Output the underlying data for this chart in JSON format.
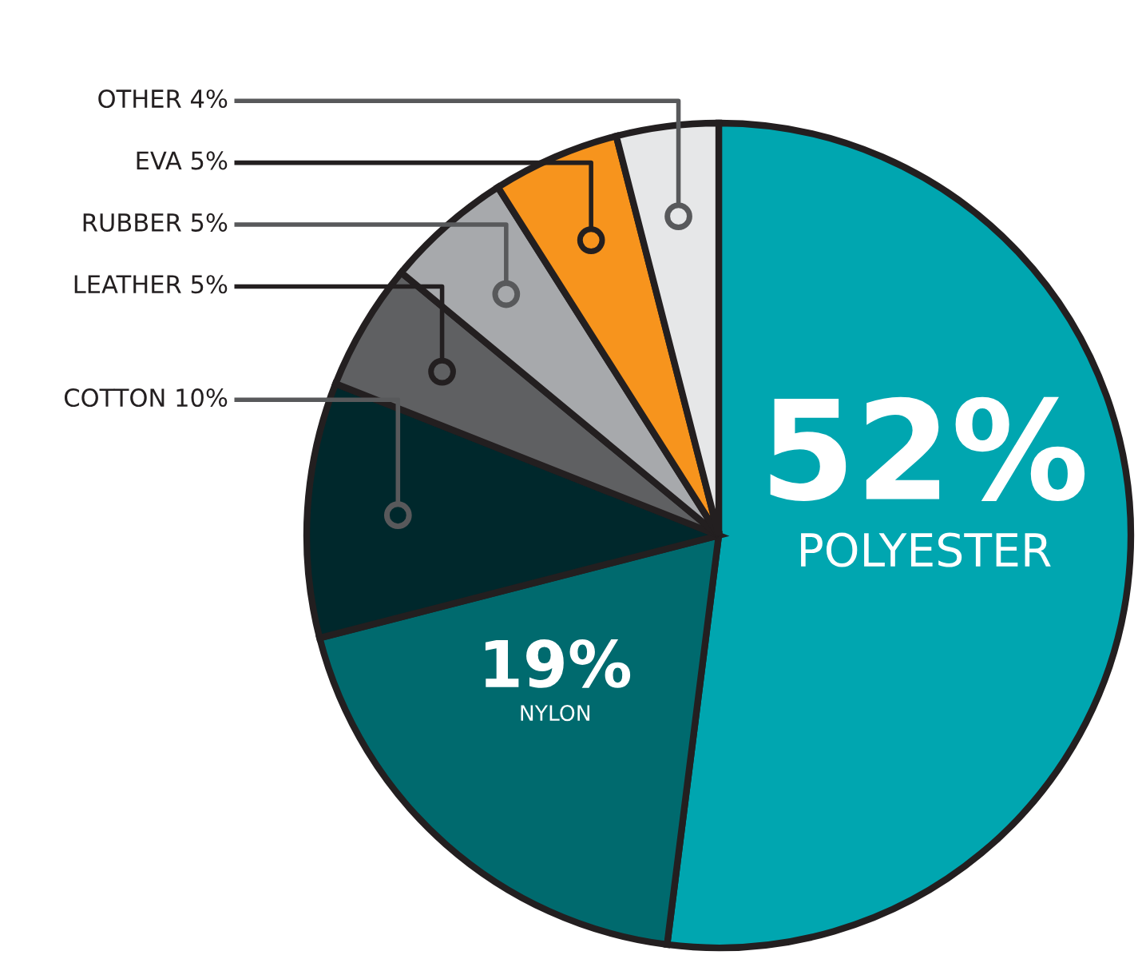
{
  "chart_data": {
    "type": "pie",
    "categories": [
      "POLYESTER",
      "NYLON",
      "COTTON",
      "LEATHER",
      "RUBBER",
      "EVA",
      "OTHER"
    ],
    "values": [
      52,
      19,
      10,
      5,
      5,
      5,
      4
    ],
    "colors": [
      "#00a6b0",
      "#006a6e",
      "#00282c",
      "#5f6062",
      "#a7a9ac",
      "#f7941d",
      "#e6e7e8"
    ],
    "value_labels": [
      "52%",
      "19%",
      "10%",
      "5%",
      "5%",
      "5%",
      "4%"
    ]
  }
}
